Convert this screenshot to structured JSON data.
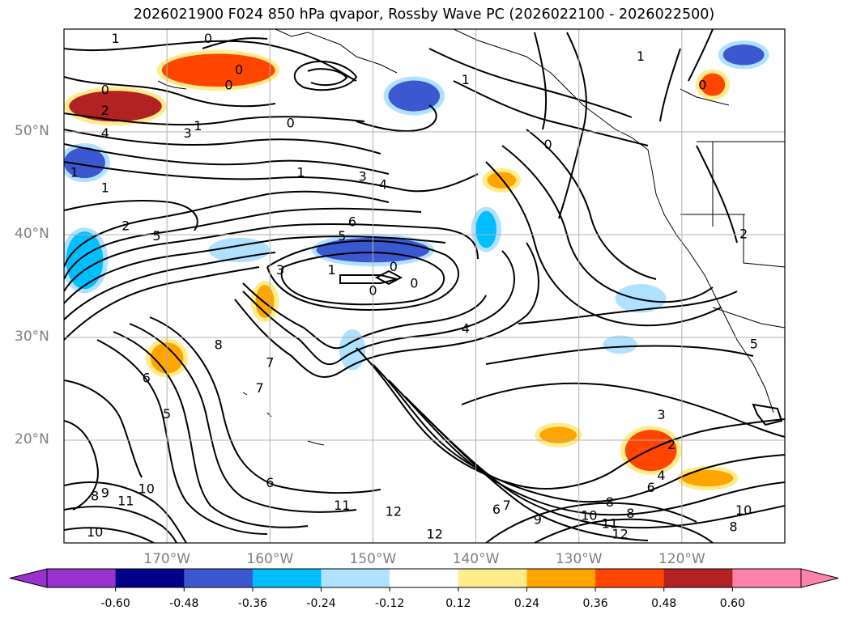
{
  "title": "2026021900 F024 850 hPa qvapor, Rossby Wave PC (2026022100 - 2026022500)",
  "map": {
    "projection": "cylindrical",
    "lon_range": [
      -180,
      -110
    ],
    "lat_range": [
      10,
      60
    ],
    "grid": true,
    "lat_ticks": [
      {
        "value": 50,
        "label": "50°N"
      },
      {
        "value": 40,
        "label": "40°N"
      },
      {
        "value": 30,
        "label": "30°N"
      },
      {
        "value": 20,
        "label": "20°N"
      }
    ],
    "lon_ticks": [
      {
        "value": -170,
        "label": "170°W"
      },
      {
        "value": -160,
        "label": "160°W"
      },
      {
        "value": -150,
        "label": "150°W"
      },
      {
        "value": -140,
        "label": "140°W"
      },
      {
        "value": -130,
        "label": "130°W"
      },
      {
        "value": -120,
        "label": "120°W"
      }
    ],
    "contour_labels": [
      {
        "text": "1",
        "lon": -175,
        "lat": 59
      },
      {
        "text": "0",
        "lon": -166,
        "lat": 59
      },
      {
        "text": "0",
        "lon": -163,
        "lat": 56
      },
      {
        "text": "0",
        "lon": -164,
        "lat": 54.5
      },
      {
        "text": "0",
        "lon": -176,
        "lat": 54
      },
      {
        "text": "2",
        "lon": -176,
        "lat": 52
      },
      {
        "text": "1",
        "lon": -167,
        "lat": 50.5
      },
      {
        "text": "4",
        "lon": -176,
        "lat": 49.8
      },
      {
        "text": "3",
        "lon": -168,
        "lat": 49.8
      },
      {
        "text": "0",
        "lon": -158,
        "lat": 50.8
      },
      {
        "text": "1",
        "lon": -179,
        "lat": 46
      },
      {
        "text": "1",
        "lon": -176,
        "lat": 44.5
      },
      {
        "text": "1",
        "lon": -157,
        "lat": 46
      },
      {
        "text": "3",
        "lon": -151,
        "lat": 45.6
      },
      {
        "text": "4",
        "lon": -149,
        "lat": 44.8
      },
      {
        "text": "1",
        "lon": -124,
        "lat": 57.3
      },
      {
        "text": "0",
        "lon": -133,
        "lat": 48.7
      },
      {
        "text": "0",
        "lon": -118,
        "lat": 54.5
      },
      {
        "text": "1",
        "lon": -141,
        "lat": 55
      },
      {
        "text": "6",
        "lon": -152,
        "lat": 41.2
      },
      {
        "text": "5",
        "lon": -153,
        "lat": 39.8
      },
      {
        "text": "2",
        "lon": -174,
        "lat": 40.8
      },
      {
        "text": "5",
        "lon": -171,
        "lat": 39.8
      },
      {
        "text": "3",
        "lon": -159,
        "lat": 36.5
      },
      {
        "text": "1",
        "lon": -154,
        "lat": 36.5
      },
      {
        "text": "0",
        "lon": -148,
        "lat": 36.8
      },
      {
        "text": "0",
        "lon": -150,
        "lat": 34.5
      },
      {
        "text": "0",
        "lon": -146,
        "lat": 35.2
      },
      {
        "text": "4",
        "lon": -141,
        "lat": 30.8
      },
      {
        "text": "8",
        "lon": -165,
        "lat": 29.2
      },
      {
        "text": "7",
        "lon": -160,
        "lat": 27.5
      },
      {
        "text": "7",
        "lon": -161,
        "lat": 25
      },
      {
        "text": "6",
        "lon": -172,
        "lat": 26
      },
      {
        "text": "5",
        "lon": -170,
        "lat": 22.5
      },
      {
        "text": "5",
        "lon": -113,
        "lat": 29.3
      },
      {
        "text": "2",
        "lon": -114,
        "lat": 40
      },
      {
        "text": "3",
        "lon": -122,
        "lat": 22.4
      },
      {
        "text": "2",
        "lon": -121,
        "lat": 19.5
      },
      {
        "text": "4",
        "lon": -122,
        "lat": 16.5
      },
      {
        "text": "6",
        "lon": -123,
        "lat": 15.3
      },
      {
        "text": "6",
        "lon": -160,
        "lat": 15.8
      },
      {
        "text": "7",
        "lon": -137,
        "lat": 13.6
      },
      {
        "text": "6",
        "lon": -138,
        "lat": 13.2
      },
      {
        "text": "8",
        "lon": -127,
        "lat": 13.9
      },
      {
        "text": "8",
        "lon": -125,
        "lat": 12.8
      },
      {
        "text": "9",
        "lon": -134,
        "lat": 12.2
      },
      {
        "text": "10",
        "lon": -129,
        "lat": 12.6
      },
      {
        "text": "11",
        "lon": -127,
        "lat": 11.8
      },
      {
        "text": "12",
        "lon": -126,
        "lat": 10.8
      },
      {
        "text": "10",
        "lon": -114,
        "lat": 13.1
      },
      {
        "text": "8",
        "lon": -115,
        "lat": 11.5
      },
      {
        "text": "11",
        "lon": -153,
        "lat": 13.6
      },
      {
        "text": "12",
        "lon": -148,
        "lat": 13
      },
      {
        "text": "12",
        "lon": -144,
        "lat": 10.8
      },
      {
        "text": "10",
        "lon": -172,
        "lat": 15.2
      },
      {
        "text": "9",
        "lon": -176,
        "lat": 14.8
      },
      {
        "text": "8",
        "lon": -177,
        "lat": 14.5
      },
      {
        "text": "11",
        "lon": -174,
        "lat": 14
      },
      {
        "text": "10",
        "lon": -177,
        "lat": 11
      }
    ],
    "pc_anomalies": [
      {
        "lon": -165,
        "lat": 56,
        "rx": 5.5,
        "ry": 1.6,
        "level": "0.36"
      },
      {
        "lon": -175,
        "lat": 52.5,
        "rx": 4.5,
        "ry": 1.5,
        "level": "0.48"
      },
      {
        "lon": -150,
        "lat": 38.5,
        "rx": 5.5,
        "ry": 1.2,
        "level": "-0.48"
      },
      {
        "lon": -178,
        "lat": 37.5,
        "rx": 1.8,
        "ry": 2.8,
        "level": "-0.36"
      },
      {
        "lon": -178,
        "lat": 47,
        "rx": 2,
        "ry": 1.5,
        "level": "-0.48"
      },
      {
        "lon": -146,
        "lat": 53.5,
        "rx": 2.5,
        "ry": 1.5,
        "level": "-0.48"
      },
      {
        "lon": -139,
        "lat": 40.5,
        "rx": 1,
        "ry": 1.8,
        "level": "-0.36"
      },
      {
        "lon": -114,
        "lat": 57.5,
        "rx": 2,
        "ry": 1,
        "level": "-0.48"
      },
      {
        "lon": -117,
        "lat": 54.6,
        "rx": 1.2,
        "ry": 1.1,
        "level": "0.36"
      },
      {
        "lon": -170,
        "lat": 28,
        "rx": 1.6,
        "ry": 1.5,
        "level": "0.24"
      },
      {
        "lon": -160.5,
        "lat": 33.5,
        "rx": 0.9,
        "ry": 1.6,
        "level": "0.24"
      },
      {
        "lon": -137.5,
        "lat": 45.3,
        "rx": 1.4,
        "ry": 0.8,
        "level": "0.24"
      },
      {
        "lon": -123,
        "lat": 19,
        "rx": 2.5,
        "ry": 2,
        "level": "0.36"
      },
      {
        "lon": -132,
        "lat": 20.5,
        "rx": 1.8,
        "ry": 0.8,
        "level": "0.24"
      },
      {
        "lon": -117.5,
        "lat": 16.3,
        "rx": 2.5,
        "ry": 0.8,
        "level": "0.24"
      },
      {
        "lon": -126,
        "lat": 29.3,
        "rx": 1.2,
        "ry": 0.5,
        "level": "-0.24"
      },
      {
        "lon": -124,
        "lat": 33.8,
        "rx": 2,
        "ry": 1,
        "level": "-0.24"
      },
      {
        "lon": -152,
        "lat": 28.8,
        "rx": 0.8,
        "ry": 1.6,
        "level": "-0.24"
      },
      {
        "lon": -163,
        "lat": 38.5,
        "rx": 2.5,
        "ry": 0.8,
        "level": "-0.24"
      }
    ]
  },
  "colorbar": {
    "ticks": [
      "-0.60",
      "-0.48",
      "-0.36",
      "-0.24",
      "-0.12",
      "0.12",
      "0.24",
      "0.36",
      "0.48",
      "0.60"
    ],
    "colors": {
      "under": "#9932cc",
      "-0.60": "#00008b",
      "-0.48": "#3c58d0",
      "-0.36": "#00bfff",
      "-0.24": "#b0e2ff",
      "-0.12": "#ffffff",
      "0.12": "#ffec8b",
      "0.24": "#ffa500",
      "0.36": "#ff4500",
      "0.48": "#b22222",
      "over": "#ff82ab"
    }
  }
}
